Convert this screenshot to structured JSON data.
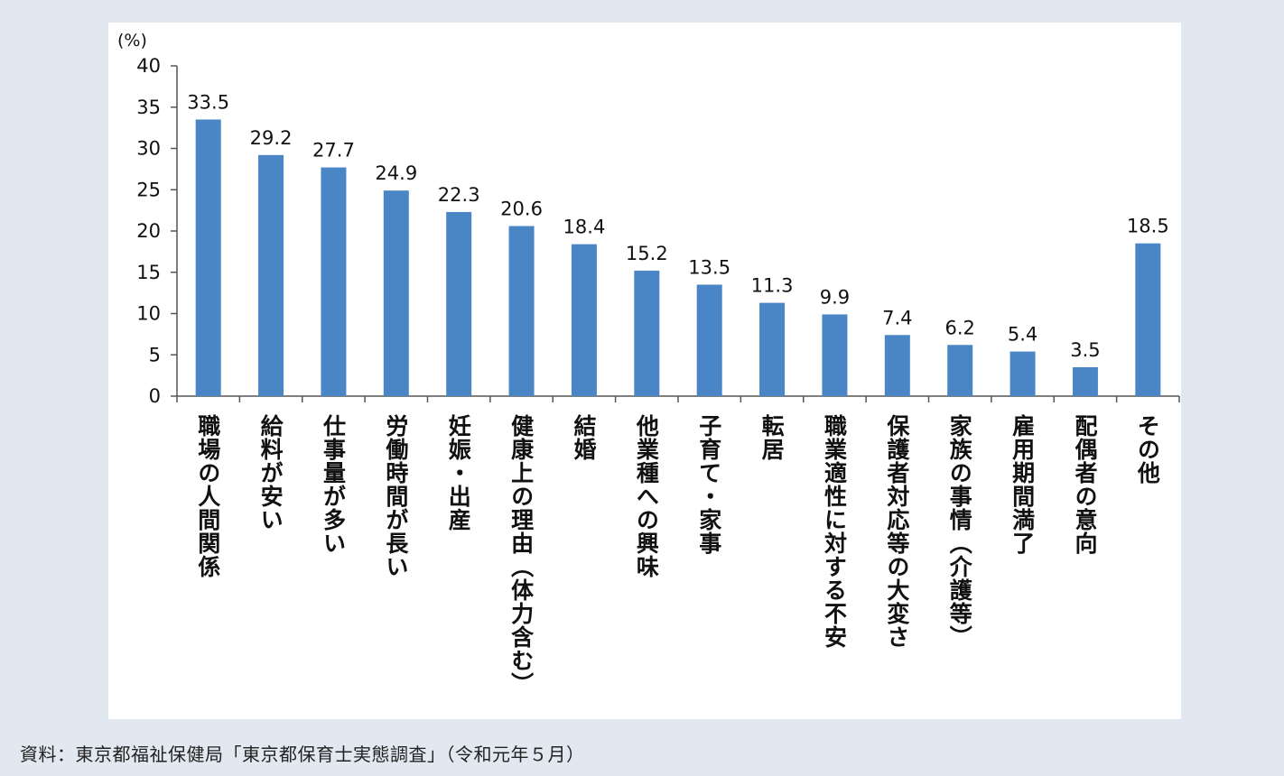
{
  "chart_data": {
    "type": "bar",
    "unit": "(%)",
    "ylim": [
      0,
      40
    ],
    "yticks": [
      "0",
      "5",
      "10",
      "15",
      "20",
      "25",
      "30",
      "35",
      "40"
    ],
    "categories": [
      "職場の人間関係",
      "給料が安い",
      "仕事量が多い",
      "労働時間が長い",
      "妊娠・出産",
      "健康上の理由（体力含む）",
      "結婚",
      "他業種への興味",
      "子育て・家事",
      "転居",
      "職業適性に対する不安",
      "保護者対応等の大変さ",
      "家族の事情（介護等）",
      "雇用期間満了",
      "配偶者の意向",
      "その他"
    ],
    "values": [
      33.5,
      29.2,
      27.7,
      24.9,
      22.3,
      20.6,
      18.4,
      15.2,
      13.5,
      11.3,
      9.9,
      7.4,
      6.2,
      5.4,
      3.5,
      18.5
    ],
    "value_labels": [
      "33.5",
      "29.2",
      "27.7",
      "24.9",
      "22.3",
      "20.6",
      "18.4",
      "15.2",
      "13.5",
      "11.3",
      "9.9",
      "7.4",
      "6.2",
      "5.4",
      "3.5",
      "18.5"
    ],
    "bar_color": "#4a86c5",
    "grid": false
  },
  "source": "資料：東京都福祉保健局「東京都保育士実態調査」（令和元年５月）"
}
